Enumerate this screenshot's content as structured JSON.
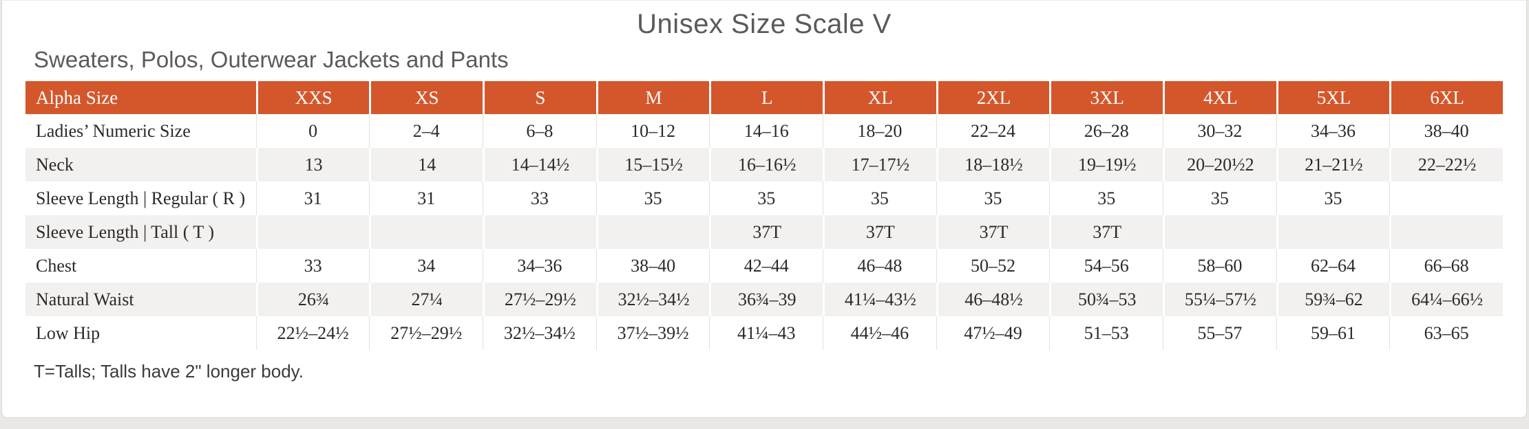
{
  "page": {
    "title": "Unisex Size Scale V",
    "subtitle": "Sweaters, Polos, Outerwear Jackets and Pants",
    "footnote": "T=Talls; Talls have 2\" longer body."
  },
  "colors": {
    "header_bg": "#D4572C",
    "header_text": "#FFFFFF",
    "row_alt_bg": "#F2F1EF",
    "body_text": "#2B2A27",
    "heading_text": "#595A5D"
  },
  "table": {
    "columns": [
      "Alpha Size",
      "XXS",
      "XS",
      "S",
      "M",
      "L",
      "XL",
      "2XL",
      "3XL",
      "4XL",
      "5XL",
      "6XL"
    ],
    "rows": [
      {
        "label": "Ladies’ Numeric Size",
        "values": [
          "0",
          "2–4",
          "6–8",
          "10–12",
          "14–16",
          "18–20",
          "22–24",
          "26–28",
          "30–32",
          "34–36",
          "38–40"
        ]
      },
      {
        "label": "Neck",
        "values": [
          "13",
          "14",
          "14–14½",
          "15–15½",
          "16–16½",
          "17–17½",
          "18–18½",
          "19–19½",
          "20–20½2",
          "21–21½",
          "22–22½"
        ]
      },
      {
        "label": "Sleeve Length | Regular ( R )",
        "values": [
          "31",
          "31",
          "33",
          "35",
          "35",
          "35",
          "35",
          "35",
          "35",
          "35",
          ""
        ]
      },
      {
        "label": "Sleeve Length | Tall ( T )",
        "values": [
          "",
          "",
          "",
          "",
          "37T",
          "37T",
          "37T",
          "37T",
          "",
          "",
          ""
        ]
      },
      {
        "label": "Chest",
        "values": [
          "33",
          "34",
          "34–36",
          "38–40",
          "42–44",
          "46–48",
          "50–52",
          "54–56",
          "58–60",
          "62–64",
          "66–68"
        ]
      },
      {
        "label": "Natural Waist",
        "values": [
          "26¾",
          "27¼",
          "27½–29½",
          "32½–34½",
          "36¾–39",
          "41¼–43½",
          "46–48½",
          "50¾–53",
          "55¼–57½",
          "59¾–62",
          "64¼–66½"
        ]
      },
      {
        "label": "Low Hip",
        "values": [
          "22½–24½",
          "27½–29½",
          "32½–34½",
          "37½–39½",
          "41¼–43",
          "44½–46",
          "47½–49",
          "51–53",
          "55–57",
          "59–61",
          "63–65"
        ]
      }
    ]
  }
}
